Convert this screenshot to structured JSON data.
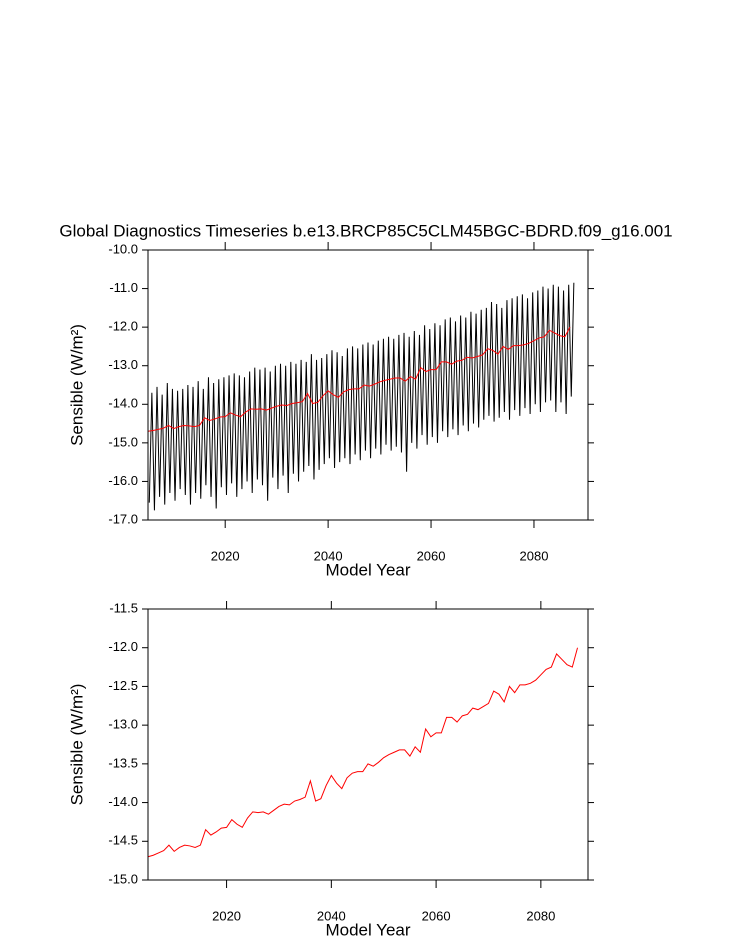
{
  "chart_data": [
    {
      "type": "line",
      "title": "Global Diagnostics Timeseries b.e13.BRCP85C5CLM45BGC-BDRD.f09_g16.001",
      "x_label": "Model Year",
      "y_label": "Sensible (W/m²)",
      "xlim": [
        2005,
        2090.5
      ],
      "xticks": [
        2020,
        2040,
        2060,
        2080
      ],
      "ylim": [
        -17,
        -10
      ],
      "yticks": [
        {
          "value": -17,
          "label": "-17.0"
        },
        {
          "value": -16,
          "label": "-16.0"
        },
        {
          "value": -15,
          "label": "-15.0"
        },
        {
          "value": -14,
          "label": "-14.0"
        },
        {
          "value": -13,
          "label": "-13.0"
        },
        {
          "value": -12,
          "label": "-12.0"
        },
        {
          "value": -11,
          "label": "-11.0"
        },
        {
          "value": -10,
          "label": "-10.0"
        }
      ],
      "series": [
        {
          "color": "#000000",
          "x": [
            2005.25,
            2005.75,
            2006.25,
            2006.75,
            2007.25,
            2007.75,
            2008.25,
            2008.75,
            2009.25,
            2009.75,
            2010.25,
            2010.75,
            2011.25,
            2011.75,
            2012.25,
            2012.75,
            2013.25,
            2013.75,
            2014.25,
            2014.75,
            2015.25,
            2015.75,
            2016.25,
            2016.75,
            2017.25,
            2017.75,
            2018.25,
            2018.75,
            2019.25,
            2019.75,
            2020.25,
            2020.75,
            2021.25,
            2021.75,
            2022.25,
            2022.75,
            2023.25,
            2023.75,
            2024.25,
            2024.75,
            2025.25,
            2025.75,
            2026.25,
            2026.75,
            2027.25,
            2027.75,
            2028.25,
            2028.75,
            2029.25,
            2029.75,
            2030.25,
            2030.75,
            2031.25,
            2031.75,
            2032.25,
            2032.75,
            2033.25,
            2033.75,
            2034.25,
            2034.75,
            2035.25,
            2035.75,
            2036.25,
            2036.75,
            2037.25,
            2037.75,
            2038.25,
            2038.75,
            2039.25,
            2039.75,
            2040.25,
            2040.75,
            2041.25,
            2041.75,
            2042.25,
            2042.75,
            2043.25,
            2043.75,
            2044.25,
            2044.75,
            2045.25,
            2045.75,
            2046.25,
            2046.75,
            2047.25,
            2047.75,
            2048.25,
            2048.75,
            2049.25,
            2049.75,
            2050.25,
            2050.75,
            2051.25,
            2051.75,
            2052.25,
            2052.75,
            2053.25,
            2053.75,
            2054.25,
            2054.75,
            2055.25,
            2055.75,
            2056.25,
            2056.75,
            2057.25,
            2057.75,
            2058.25,
            2058.75,
            2059.25,
            2059.75,
            2060.25,
            2060.75,
            2061.25,
            2061.75,
            2062.25,
            2062.75,
            2063.25,
            2063.75,
            2064.25,
            2064.75,
            2065.25,
            2065.75,
            2066.25,
            2066.75,
            2067.25,
            2067.75,
            2068.25,
            2068.75,
            2069.25,
            2069.75,
            2070.25,
            2070.75,
            2071.25,
            2071.75,
            2072.25,
            2072.75,
            2073.25,
            2073.75,
            2074.25,
            2074.75,
            2075.25,
            2075.75,
            2076.25,
            2076.75,
            2077.25,
            2077.75,
            2078.25,
            2078.75,
            2079.25,
            2079.75,
            2080.25,
            2080.75,
            2081.25,
            2081.75,
            2082.25,
            2082.75,
            2083.25,
            2083.75,
            2084.25,
            2084.75,
            2085.25,
            2085.75,
            2086.25,
            2086.75,
            2087.25,
            2087.75
          ],
          "values": [
            -16.55,
            -13.7,
            -16.75,
            -13.55,
            -16.4,
            -13.75,
            -16.6,
            -13.45,
            -16.3,
            -13.6,
            -16.5,
            -13.65,
            -16.2,
            -13.6,
            -16.35,
            -13.5,
            -16.6,
            -13.55,
            -16.3,
            -13.4,
            -16.45,
            -13.6,
            -16.1,
            -13.3,
            -16.4,
            -13.45,
            -16.7,
            -13.35,
            -16.15,
            -13.3,
            -16.35,
            -13.25,
            -16.05,
            -13.2,
            -16.4,
            -13.25,
            -16.2,
            -13.3,
            -16.0,
            -13.15,
            -16.3,
            -13.05,
            -15.95,
            -13.1,
            -16.1,
            -13.05,
            -16.5,
            -13.15,
            -15.9,
            -13.0,
            -16.2,
            -12.95,
            -15.85,
            -13.0,
            -16.3,
            -12.9,
            -15.8,
            -12.95,
            -16.0,
            -12.85,
            -15.75,
            -12.9,
            -15.6,
            -12.7,
            -15.95,
            -12.85,
            -15.7,
            -12.8,
            -15.55,
            -12.7,
            -15.4,
            -12.6,
            -15.65,
            -12.65,
            -15.5,
            -12.75,
            -15.4,
            -12.55,
            -15.55,
            -12.5,
            -15.3,
            -12.55,
            -15.45,
            -12.45,
            -15.2,
            -12.4,
            -15.4,
            -12.45,
            -15.15,
            -12.35,
            -15.3,
            -12.3,
            -15.05,
            -12.25,
            -15.2,
            -12.3,
            -15.1,
            -12.2,
            -15.25,
            -12.15,
            -15.75,
            -12.25,
            -15.0,
            -12.1,
            -15.15,
            -12.2,
            -14.8,
            -11.95,
            -15.05,
            -12.05,
            -14.85,
            -11.9,
            -15.0,
            -11.95,
            -14.7,
            -11.8,
            -14.85,
            -11.75,
            -14.65,
            -11.85,
            -14.8,
            -11.7,
            -14.55,
            -11.75,
            -14.7,
            -11.6,
            -14.5,
            -11.65,
            -14.6,
            -11.55,
            -14.4,
            -11.5,
            -14.3,
            -11.35,
            -14.45,
            -11.4,
            -14.35,
            -11.5,
            -14.2,
            -11.3,
            -14.4,
            -11.25,
            -14.15,
            -11.2,
            -14.3,
            -11.15,
            -14.1,
            -11.25,
            -14.25,
            -11.1,
            -14.0,
            -11.05,
            -14.2,
            -10.95,
            -13.95,
            -11.0,
            -13.9,
            -10.9,
            -14.2,
            -10.95,
            -13.95,
            -11.05,
            -14.25,
            -10.9,
            -13.8,
            -10.85
          ]
        },
        {
          "color": "#ff0000",
          "x": [
            2005,
            2006,
            2007,
            2008,
            2009,
            2010,
            2011,
            2012,
            2013,
            2014,
            2015,
            2016,
            2017,
            2018,
            2019,
            2020,
            2021,
            2022,
            2023,
            2024,
            2025,
            2026,
            2027,
            2028,
            2029,
            2030,
            2031,
            2032,
            2033,
            2034,
            2035,
            2036,
            2037,
            2038,
            2039,
            2040,
            2041,
            2042,
            2043,
            2044,
            2045,
            2046,
            2047,
            2048,
            2049,
            2050,
            2051,
            2052,
            2053,
            2054,
            2055,
            2056,
            2057,
            2058,
            2059,
            2060,
            2061,
            2062,
            2063,
            2064,
            2065,
            2066,
            2067,
            2068,
            2069,
            2070,
            2071,
            2072,
            2073,
            2074,
            2075,
            2076,
            2077,
            2078,
            2079,
            2080,
            2081,
            2082,
            2083,
            2084,
            2085,
            2086,
            2087
          ],
          "values": [
            -14.7,
            -14.68,
            -14.65,
            -14.62,
            -14.55,
            -14.63,
            -14.58,
            -14.55,
            -14.56,
            -14.58,
            -14.55,
            -14.35,
            -14.42,
            -14.38,
            -14.33,
            -14.32,
            -14.22,
            -14.28,
            -14.32,
            -14.2,
            -14.12,
            -14.13,
            -14.12,
            -14.15,
            -14.1,
            -14.05,
            -14.02,
            -14.03,
            -13.98,
            -13.96,
            -13.93,
            -13.72,
            -13.98,
            -13.95,
            -13.78,
            -13.65,
            -13.75,
            -13.82,
            -13.68,
            -13.62,
            -13.6,
            -13.6,
            -13.5,
            -13.53,
            -13.48,
            -13.42,
            -13.38,
            -13.35,
            -13.32,
            -13.32,
            -13.4,
            -13.28,
            -13.35,
            -13.05,
            -13.15,
            -13.1,
            -13.1,
            -12.9,
            -12.9,
            -12.96,
            -12.88,
            -12.86,
            -12.78,
            -12.8,
            -12.76,
            -12.72,
            -12.56,
            -12.6,
            -12.7,
            -12.5,
            -12.58,
            -12.48,
            -12.48,
            -12.46,
            -12.42,
            -12.35,
            -12.28,
            -12.25,
            -12.08,
            -12.15,
            -12.22,
            -12.25,
            -12.0
          ]
        }
      ]
    },
    {
      "type": "line",
      "x_label": "Model Year",
      "y_label": "Sensible (W/m²)",
      "xlim": [
        2005,
        2089
      ],
      "xticks": [
        2020,
        2040,
        2060,
        2080
      ],
      "ylim": [
        -15,
        -11.5
      ],
      "yticks": [
        {
          "value": -15,
          "label": "-15.0"
        },
        -14.5,
        {
          "value": -14,
          "label": "-14.0"
        },
        -13.5,
        {
          "value": -13,
          "label": "-13.0"
        },
        -12.5,
        {
          "value": -12,
          "label": "-12.0"
        },
        -11.5
      ],
      "series": [
        {
          "color": "#ff0000",
          "x": [
            2005,
            2006,
            2007,
            2008,
            2009,
            2010,
            2011,
            2012,
            2013,
            2014,
            2015,
            2016,
            2017,
            2018,
            2019,
            2020,
            2021,
            2022,
            2023,
            2024,
            2025,
            2026,
            2027,
            2028,
            2029,
            2030,
            2031,
            2032,
            2033,
            2034,
            2035,
            2036,
            2037,
            2038,
            2039,
            2040,
            2041,
            2042,
            2043,
            2044,
            2045,
            2046,
            2047,
            2048,
            2049,
            2050,
            2051,
            2052,
            2053,
            2054,
            2055,
            2056,
            2057,
            2058,
            2059,
            2060,
            2061,
            2062,
            2063,
            2064,
            2065,
            2066,
            2067,
            2068,
            2069,
            2070,
            2071,
            2072,
            2073,
            2074,
            2075,
            2076,
            2077,
            2078,
            2079,
            2080,
            2081,
            2082,
            2083,
            2084,
            2085,
            2086,
            2087
          ],
          "values": [
            -14.7,
            -14.68,
            -14.65,
            -14.62,
            -14.55,
            -14.63,
            -14.58,
            -14.55,
            -14.56,
            -14.58,
            -14.55,
            -14.35,
            -14.42,
            -14.38,
            -14.33,
            -14.32,
            -14.22,
            -14.28,
            -14.32,
            -14.2,
            -14.12,
            -14.13,
            -14.12,
            -14.15,
            -14.1,
            -14.05,
            -14.02,
            -14.03,
            -13.98,
            -13.96,
            -13.93,
            -13.72,
            -13.98,
            -13.95,
            -13.78,
            -13.65,
            -13.75,
            -13.82,
            -13.68,
            -13.62,
            -13.6,
            -13.6,
            -13.5,
            -13.53,
            -13.48,
            -13.42,
            -13.38,
            -13.35,
            -13.32,
            -13.32,
            -13.4,
            -13.28,
            -13.35,
            -13.05,
            -13.15,
            -13.1,
            -13.1,
            -12.9,
            -12.9,
            -12.96,
            -12.88,
            -12.86,
            -12.78,
            -12.8,
            -12.76,
            -12.72,
            -12.56,
            -12.6,
            -12.7,
            -12.5,
            -12.58,
            -12.48,
            -12.48,
            -12.46,
            -12.42,
            -12.35,
            -12.28,
            -12.25,
            -12.08,
            -12.15,
            -12.22,
            -12.25,
            -12.0
          ]
        }
      ]
    }
  ]
}
